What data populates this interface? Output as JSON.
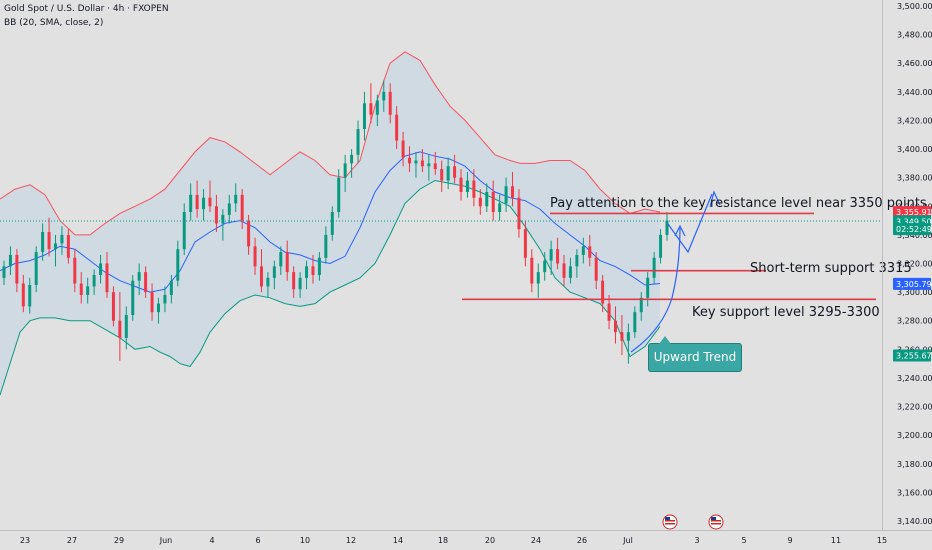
{
  "header": {
    "symbol_line": "Gold Spot / U.S. Dollar · 4h · FXOPEN",
    "indicator_line": "BB (20, SMA, close, 2)"
  },
  "chart_data": {
    "type": "candlestick",
    "ylim": [
      3140,
      3500
    ],
    "y_ticks": [
      "3,140.00",
      "3,160.00",
      "3,180.00",
      "3,200.00",
      "3,220.00",
      "3,240.00",
      "3,260.00",
      "3,280.00",
      "3,300.00",
      "3,320.00",
      "3,340.00",
      "3,360.00",
      "3,380.00",
      "3,400.00",
      "3,420.00",
      "3,440.00",
      "3,460.00",
      "3,480.00",
      "3,500.00"
    ],
    "x_ticks": [
      "23",
      "27",
      "29",
      "Jun",
      "4",
      "6",
      "10",
      "12",
      "14",
      "18",
      "20",
      "24",
      "26",
      "Jul",
      "3",
      "5",
      "9",
      "11",
      "15"
    ],
    "price_badges": [
      {
        "label": "3,355.91",
        "value": 3355.91,
        "color": "#f23645"
      },
      {
        "label": "3,349.50",
        "value": 3349.5,
        "color": "#089981"
      },
      {
        "label": "02:52:49",
        "value": 3344.0,
        "color": "#089981"
      },
      {
        "label": "3,305.79",
        "value": 3305.79,
        "color": "#2962ff"
      },
      {
        "label": "3,255.67",
        "value": 3255.67,
        "color": "#089981"
      }
    ],
    "annotations": {
      "resistance_text": "Pay attention to the key resistance level near 3350 points",
      "short_support_text": "Short-term support 3315",
      "key_support_text": "Key support level 3295-3300",
      "trend_label": "Upward Trend"
    },
    "horizontal_lines": [
      {
        "value": 3355,
        "color": "#e03a48"
      },
      {
        "value": 3315,
        "color": "#e03a48"
      },
      {
        "value": 3295,
        "color": "#e03a48"
      }
    ],
    "bollinger": {
      "period": 20,
      "upper": [
        [
          0,
          3365
        ],
        [
          15,
          3372
        ],
        [
          30,
          3375
        ],
        [
          45,
          3368
        ],
        [
          60,
          3350
        ],
        [
          75,
          3340
        ],
        [
          90,
          3340
        ],
        [
          105,
          3348
        ],
        [
          120,
          3355
        ],
        [
          135,
          3360
        ],
        [
          150,
          3365
        ],
        [
          165,
          3372
        ],
        [
          180,
          3385
        ],
        [
          195,
          3398
        ],
        [
          210,
          3408
        ],
        [
          225,
          3405
        ],
        [
          240,
          3398
        ],
        [
          255,
          3390
        ],
        [
          270,
          3382
        ],
        [
          285,
          3390
        ],
        [
          300,
          3398
        ],
        [
          315,
          3392
        ],
        [
          330,
          3382
        ],
        [
          345,
          3380
        ],
        [
          360,
          3392
        ],
        [
          375,
          3430
        ],
        [
          390,
          3460
        ],
        [
          405,
          3468
        ],
        [
          420,
          3462
        ],
        [
          435,
          3445
        ],
        [
          450,
          3430
        ],
        [
          465,
          3420
        ],
        [
          480,
          3408
        ],
        [
          495,
          3396
        ],
        [
          510,
          3392
        ],
        [
          520,
          3390
        ],
        [
          535,
          3390
        ],
        [
          550,
          3392
        ],
        [
          570,
          3392
        ],
        [
          585,
          3385
        ],
        [
          600,
          3372
        ],
        [
          615,
          3362
        ],
        [
          630,
          3355
        ],
        [
          645,
          3358
        ],
        [
          660,
          3356
        ]
      ],
      "middle": [
        [
          0,
          3315
        ],
        [
          15,
          3320
        ],
        [
          30,
          3322
        ],
        [
          45,
          3326
        ],
        [
          60,
          3332
        ],
        [
          75,
          3330
        ],
        [
          90,
          3322
        ],
        [
          105,
          3314
        ],
        [
          120,
          3308
        ],
        [
          135,
          3304
        ],
        [
          150,
          3300
        ],
        [
          165,
          3302
        ],
        [
          180,
          3315
        ],
        [
          195,
          3335
        ],
        [
          210,
          3342
        ],
        [
          225,
          3348
        ],
        [
          240,
          3350
        ],
        [
          255,
          3345
        ],
        [
          270,
          3335
        ],
        [
          285,
          3328
        ],
        [
          300,
          3326
        ],
        [
          315,
          3322
        ],
        [
          330,
          3320
        ],
        [
          345,
          3325
        ],
        [
          360,
          3345
        ],
        [
          375,
          3370
        ],
        [
          390,
          3385
        ],
        [
          405,
          3395
        ],
        [
          420,
          3398
        ],
        [
          435,
          3395
        ],
        [
          450,
          3393
        ],
        [
          465,
          3388
        ],
        [
          480,
          3378
        ],
        [
          495,
          3370
        ],
        [
          510,
          3366
        ],
        [
          525,
          3364
        ],
        [
          540,
          3358
        ],
        [
          555,
          3348
        ],
        [
          570,
          3340
        ],
        [
          585,
          3332
        ],
        [
          600,
          3322
        ],
        [
          615,
          3318
        ],
        [
          630,
          3312
        ],
        [
          645,
          3305
        ],
        [
          660,
          3306
        ]
      ],
      "lower": [
        [
          0,
          3228
        ],
        [
          10,
          3250
        ],
        [
          20,
          3272
        ],
        [
          30,
          3280
        ],
        [
          40,
          3282
        ],
        [
          55,
          3282
        ],
        [
          70,
          3280
        ],
        [
          90,
          3280
        ],
        [
          105,
          3274
        ],
        [
          120,
          3268
        ],
        [
          135,
          3260
        ],
        [
          150,
          3262
        ],
        [
          160,
          3258
        ],
        [
          170,
          3255
        ],
        [
          180,
          3250
        ],
        [
          190,
          3248
        ],
        [
          200,
          3258
        ],
        [
          210,
          3272
        ],
        [
          225,
          3285
        ],
        [
          240,
          3294
        ],
        [
          255,
          3298
        ],
        [
          270,
          3296
        ],
        [
          285,
          3292
        ],
        [
          300,
          3290
        ],
        [
          315,
          3292
        ],
        [
          330,
          3300
        ],
        [
          345,
          3305
        ],
        [
          360,
          3310
        ],
        [
          375,
          3320
        ],
        [
          390,
          3340
        ],
        [
          405,
          3362
        ],
        [
          420,
          3372
        ],
        [
          435,
          3378
        ],
        [
          450,
          3376
        ],
        [
          465,
          3374
        ],
        [
          480,
          3370
        ],
        [
          495,
          3365
        ],
        [
          510,
          3360
        ],
        [
          525,
          3346
        ],
        [
          540,
          3330
        ],
        [
          555,
          3310
        ],
        [
          570,
          3300
        ],
        [
          585,
          3296
        ],
        [
          600,
          3292
        ],
        [
          615,
          3280
        ],
        [
          630,
          3255
        ],
        [
          645,
          3262
        ],
        [
          660,
          3276
        ]
      ]
    },
    "candles": [
      [
        3310,
        3322,
        3305,
        3318
      ],
      [
        3318,
        3332,
        3312,
        3326
      ],
      [
        3326,
        3330,
        3300,
        3306
      ],
      [
        3306,
        3312,
        3286,
        3290
      ],
      [
        3290,
        3310,
        3285,
        3305
      ],
      [
        3305,
        3332,
        3300,
        3328
      ],
      [
        3328,
        3348,
        3322,
        3342
      ],
      [
        3342,
        3352,
        3325,
        3330
      ],
      [
        3330,
        3340,
        3318,
        3334
      ],
      [
        3334,
        3346,
        3326,
        3340
      ],
      [
        3340,
        3344,
        3320,
        3324
      ],
      [
        3324,
        3330,
        3300,
        3306
      ],
      [
        3306,
        3314,
        3292,
        3298
      ],
      [
        3298,
        3310,
        3292,
        3304
      ],
      [
        3304,
        3316,
        3298,
        3312
      ],
      [
        3312,
        3326,
        3306,
        3320
      ],
      [
        3320,
        3328,
        3296,
        3300
      ],
      [
        3300,
        3304,
        3276,
        3280
      ],
      [
        3280,
        3300,
        3252,
        3268
      ],
      [
        3268,
        3290,
        3260,
        3284
      ],
      [
        3284,
        3312,
        3280,
        3308
      ],
      [
        3308,
        3320,
        3298,
        3314
      ],
      [
        3314,
        3318,
        3296,
        3300
      ],
      [
        3300,
        3306,
        3280,
        3286
      ],
      [
        3286,
        3296,
        3278,
        3292
      ],
      [
        3292,
        3304,
        3286,
        3298
      ],
      [
        3298,
        3312,
        3292,
        3308
      ],
      [
        3308,
        3336,
        3304,
        3330
      ],
      [
        3330,
        3362,
        3326,
        3356
      ],
      [
        3356,
        3376,
        3350,
        3368
      ],
      [
        3368,
        3378,
        3352,
        3358
      ],
      [
        3358,
        3372,
        3350,
        3366
      ],
      [
        3366,
        3378,
        3356,
        3360
      ],
      [
        3360,
        3368,
        3342,
        3348
      ],
      [
        3348,
        3358,
        3336,
        3354
      ],
      [
        3354,
        3368,
        3348,
        3362
      ],
      [
        3362,
        3376,
        3356,
        3368
      ],
      [
        3368,
        3372,
        3344,
        3350
      ],
      [
        3350,
        3354,
        3326,
        3332
      ],
      [
        3332,
        3338,
        3312,
        3318
      ],
      [
        3318,
        3330,
        3300,
        3304
      ],
      [
        3304,
        3314,
        3296,
        3310
      ],
      [
        3310,
        3322,
        3302,
        3318
      ],
      [
        3318,
        3332,
        3312,
        3328
      ],
      [
        3328,
        3336,
        3308,
        3314
      ],
      [
        3314,
        3318,
        3296,
        3302
      ],
      [
        3302,
        3314,
        3296,
        3310
      ],
      [
        3310,
        3322,
        3302,
        3318
      ],
      [
        3318,
        3326,
        3306,
        3312
      ],
      [
        3312,
        3328,
        3308,
        3324
      ],
      [
        3324,
        3346,
        3320,
        3340
      ],
      [
        3340,
        3360,
        3336,
        3356
      ],
      [
        3356,
        3386,
        3352,
        3380
      ],
      [
        3380,
        3396,
        3370,
        3390
      ],
      [
        3390,
        3400,
        3380,
        3396
      ],
      [
        3396,
        3420,
        3390,
        3414
      ],
      [
        3414,
        3440,
        3406,
        3432
      ],
      [
        3432,
        3446,
        3418,
        3424
      ],
      [
        3424,
        3438,
        3416,
        3434
      ],
      [
        3434,
        3448,
        3426,
        3440
      ],
      [
        3440,
        3446,
        3418,
        3424
      ],
      [
        3424,
        3430,
        3400,
        3406
      ],
      [
        3406,
        3412,
        3388,
        3394
      ],
      [
        3394,
        3402,
        3384,
        3390
      ],
      [
        3390,
        3398,
        3380,
        3392
      ],
      [
        3392,
        3400,
        3384,
        3388
      ],
      [
        3388,
        3396,
        3378,
        3390
      ],
      [
        3390,
        3398,
        3382,
        3386
      ],
      [
        3386,
        3392,
        3370,
        3378
      ],
      [
        3378,
        3394,
        3372,
        3388
      ],
      [
        3388,
        3396,
        3376,
        3380
      ],
      [
        3380,
        3386,
        3364,
        3370
      ],
      [
        3370,
        3384,
        3366,
        3378
      ],
      [
        3378,
        3386,
        3360,
        3366
      ],
      [
        3366,
        3372,
        3354,
        3360
      ],
      [
        3360,
        3376,
        3356,
        3370
      ],
      [
        3370,
        3378,
        3350,
        3356
      ],
      [
        3356,
        3368,
        3350,
        3362
      ],
      [
        3362,
        3380,
        3356,
        3374
      ],
      [
        3374,
        3384,
        3360,
        3366
      ],
      [
        3366,
        3372,
        3338,
        3344
      ],
      [
        3344,
        3350,
        3318,
        3324
      ],
      [
        3324,
        3330,
        3300,
        3306
      ],
      [
        3306,
        3320,
        3296,
        3314
      ],
      [
        3314,
        3328,
        3308,
        3322
      ],
      [
        3322,
        3336,
        3312,
        3330
      ],
      [
        3330,
        3338,
        3316,
        3320
      ],
      [
        3320,
        3326,
        3304,
        3310
      ],
      [
        3310,
        3324,
        3306,
        3318
      ],
      [
        3318,
        3330,
        3310,
        3326
      ],
      [
        3326,
        3338,
        3320,
        3332
      ],
      [
        3332,
        3340,
        3318,
        3324
      ],
      [
        3324,
        3328,
        3302,
        3308
      ],
      [
        3308,
        3312,
        3286,
        3292
      ],
      [
        3292,
        3298,
        3274,
        3280
      ],
      [
        3280,
        3290,
        3264,
        3272
      ],
      [
        3272,
        3284,
        3256,
        3266
      ],
      [
        3266,
        3278,
        3250,
        3272
      ],
      [
        3272,
        3290,
        3268,
        3286
      ],
      [
        3286,
        3300,
        3280,
        3296
      ],
      [
        3296,
        3314,
        3290,
        3310
      ],
      [
        3310,
        3328,
        3306,
        3324
      ],
      [
        3324,
        3344,
        3320,
        3340
      ],
      [
        3340,
        3356,
        3336,
        3350
      ]
    ]
  }
}
